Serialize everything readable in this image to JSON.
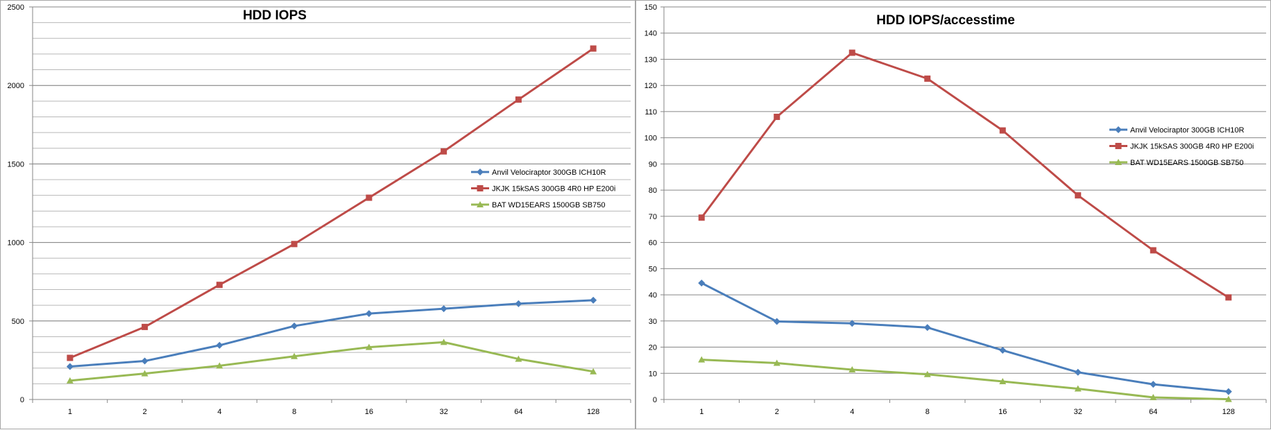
{
  "colors": {
    "series1": "#4a7ebb",
    "series2": "#be4b48",
    "series3": "#98b954",
    "grid": "#868686",
    "axis": "#868686"
  },
  "legend": [
    "Anvil Velociraptor 300GB ICH10R",
    "JKJK 15kSAS 300GB 4R0 HP E200i",
    "BAT WD15EARS 1500GB SB750"
  ],
  "chart_data": [
    {
      "type": "line",
      "title": "HDD IOPS",
      "categories": [
        "1",
        "2",
        "4",
        "8",
        "16",
        "32",
        "64",
        "128"
      ],
      "ylim": [
        0,
        2500
      ],
      "y_ticks": [
        "0",
        "500",
        "1000",
        "1500",
        "2000",
        "2500"
      ],
      "grid": true,
      "legend_position": "right",
      "series": [
        {
          "name": "Anvil Velociraptor 300GB ICH10R",
          "marker": "diamond",
          "values": [
            210,
            245,
            345,
            468,
            547,
            578,
            610,
            632
          ]
        },
        {
          "name": "JKJK 15kSAS 300GB 4R0 HP E200i",
          "marker": "square",
          "values": [
            265,
            462,
            730,
            990,
            1285,
            1580,
            1910,
            2235
          ]
        },
        {
          "name": "BAT WD15EARS 1500GB SB750",
          "marker": "triangle",
          "values": [
            120,
            165,
            215,
            275,
            333,
            365,
            258,
            178
          ]
        }
      ]
    },
    {
      "type": "line",
      "title": "HDD IOPS/accesstime",
      "categories": [
        "1",
        "2",
        "4",
        "8",
        "16",
        "32",
        "64",
        "128"
      ],
      "ylim": [
        0,
        150
      ],
      "y_ticks": [
        "0",
        "10",
        "20",
        "30",
        "40",
        "50",
        "60",
        "70",
        "80",
        "90",
        "100",
        "110",
        "120",
        "130",
        "140",
        "150"
      ],
      "grid": true,
      "legend_position": "right",
      "series": [
        {
          "name": "Anvil Velociraptor 300GB ICH10R",
          "marker": "diamond",
          "values": [
            44.5,
            29.8,
            29.1,
            27.5,
            18.8,
            10.4,
            5.8,
            3.0
          ]
        },
        {
          "name": "JKJK 15kSAS 300GB 4R0 HP E200i",
          "marker": "square",
          "values": [
            69.5,
            108,
            132.5,
            122.6,
            102.8,
            78,
            57,
            39
          ]
        },
        {
          "name": "BAT WD15EARS 1500GB SB750",
          "marker": "triangle",
          "values": [
            15.2,
            13.9,
            11.4,
            9.6,
            6.9,
            4.1,
            0.8,
            0.1
          ]
        }
      ]
    }
  ]
}
